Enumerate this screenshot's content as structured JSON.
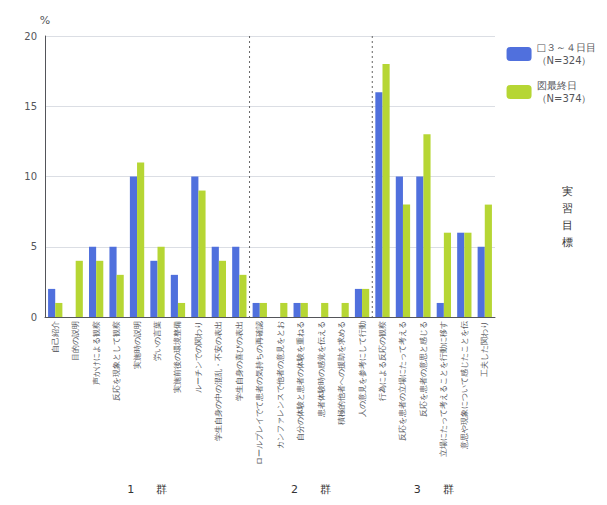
{
  "chart_data": {
    "type": "bar",
    "categories": [
      "自己紹介",
      "目的の説明",
      "声かけによる観察",
      "反応を現象として観察",
      "実施時の説明",
      "労いの言葉",
      "実施前後の環境整備",
      "ルーチンでの関わり",
      "学生自身の中の混乱・不安の表出",
      "学生自身の喜びの表出",
      "ロールプレイでて患者の気持ちの再確認",
      "カンファレンスで他者の意見をとお",
      "自分の体験と患者の体験を重ねる",
      "患者体験時の感覚を伝える",
      "積極的他者への援助を求める",
      "人の意見を参考にして行動",
      "行為による反応の観察",
      "反応を患者の立場にたって考える",
      "反応を患者の意思と感じる",
      "立場にたって考えることを行動に移す",
      "意思や現象について感じたことを伝",
      "工夫した関わり"
    ],
    "series": [
      {
        "name": "□３～４日目\n（N=324）",
        "values": [
          2,
          0,
          5,
          5,
          10,
          4,
          3,
          10,
          5,
          5,
          1,
          0,
          1,
          0,
          0,
          2,
          16,
          10,
          10,
          1,
          6,
          5
        ]
      },
      {
        "name": "図最終日\n（N=374）",
        "values": [
          1,
          4,
          4,
          3,
          11,
          5,
          1,
          9,
          4,
          3,
          1,
          1,
          1,
          1,
          1,
          2,
          18,
          8,
          13,
          6,
          6,
          8
        ]
      }
    ],
    "ylabel": "%",
    "ylim": [
      0,
      20
    ],
    "yticks": [
      0,
      5,
      10,
      15,
      20
    ],
    "grid": true,
    "legend": "upper right",
    "annotations": [
      "1　　群",
      "2　　群",
      "3　　群",
      "実\n習\n目\n標"
    ]
  }
}
